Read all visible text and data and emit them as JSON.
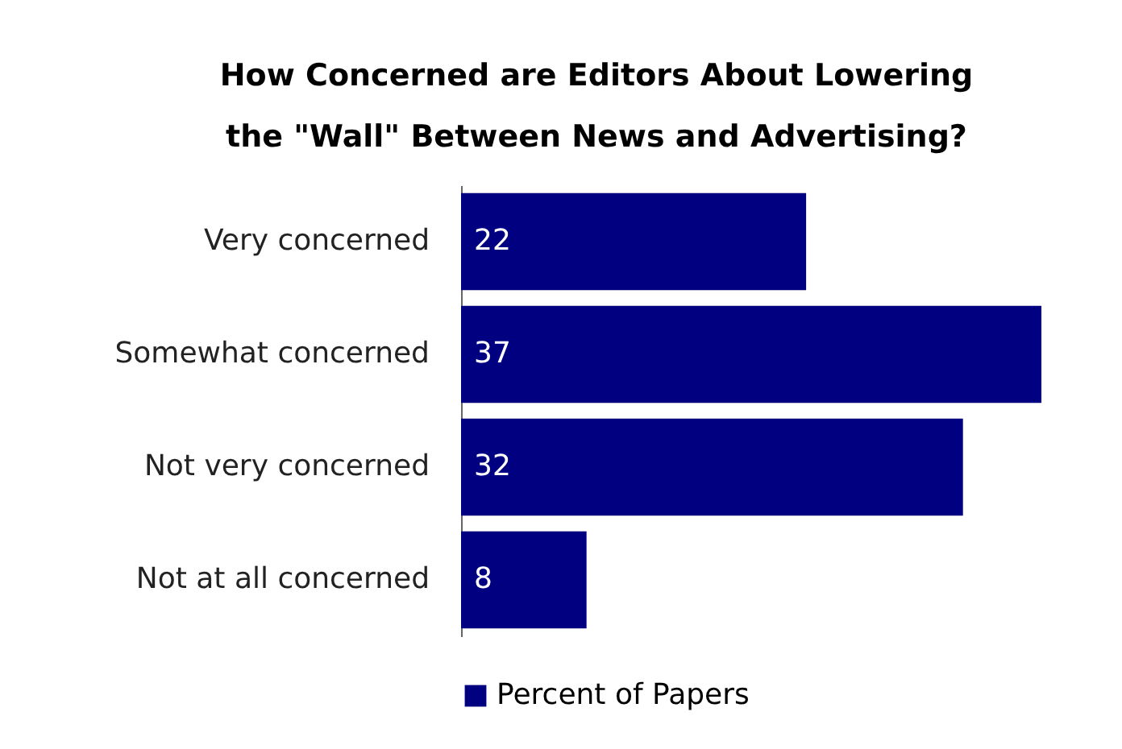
{
  "chart_data": {
    "type": "bar",
    "orientation": "horizontal",
    "title": "How Concerned are Editors About Lowering the \"Wall\" Between News and Advertising?",
    "categories": [
      "Very concerned",
      "Somewhat concerned",
      "Not very concerned",
      "Not at all concerned"
    ],
    "series": [
      {
        "name": "Percent of Papers",
        "color": "#000080",
        "values": [
          22,
          37,
          32,
          8
        ]
      }
    ],
    "data_labels": true,
    "legend": "bottom"
  }
}
